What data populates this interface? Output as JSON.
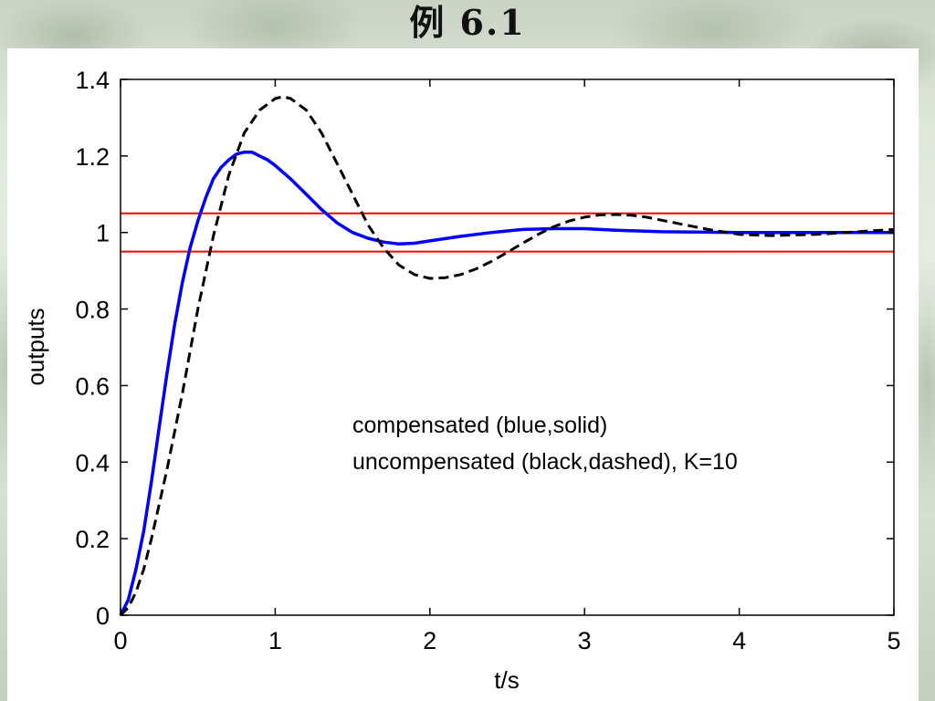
{
  "slide_title": "例 6.1",
  "chart_data": {
    "type": "line",
    "xlabel": "t/s",
    "ylabel": "outputs",
    "xlim": [
      0,
      5
    ],
    "ylim": [
      0,
      1.4
    ],
    "x_ticks": [
      "0",
      "1",
      "2",
      "3",
      "4",
      "5"
    ],
    "y_ticks": [
      "0",
      "0.2",
      "0.4",
      "0.6",
      "0.8",
      "1",
      "1.2",
      "1.4"
    ],
    "grid": false,
    "annotations": [
      "compensated (blue,solid)",
      "uncompensated (black,dashed), K=10"
    ],
    "reference_lines": [
      1.05,
      0.95
    ],
    "series": [
      {
        "style": "solid",
        "color": "#0000ff",
        "x": [
          0,
          0.05,
          0.1,
          0.15,
          0.2,
          0.25,
          0.3,
          0.35,
          0.4,
          0.45,
          0.5,
          0.55,
          0.6,
          0.65,
          0.7,
          0.75,
          0.8,
          0.85,
          0.9,
          0.95,
          1.0,
          1.1,
          1.2,
          1.3,
          1.4,
          1.5,
          1.6,
          1.7,
          1.8,
          1.9,
          2.0,
          2.2,
          2.4,
          2.6,
          2.8,
          3.0,
          3.2,
          3.5,
          4.0,
          4.5,
          5.0
        ],
        "y": [
          0,
          0.04,
          0.12,
          0.22,
          0.35,
          0.49,
          0.63,
          0.76,
          0.87,
          0.96,
          1.03,
          1.09,
          1.14,
          1.17,
          1.19,
          1.205,
          1.21,
          1.21,
          1.2,
          1.19,
          1.175,
          1.14,
          1.1,
          1.06,
          1.025,
          1.0,
          0.985,
          0.975,
          0.97,
          0.972,
          0.978,
          0.99,
          1.0,
          1.008,
          1.01,
          1.01,
          1.006,
          1.002,
          1.0,
          1.0,
          1.0
        ]
      },
      {
        "style": "dashed",
        "color": "#000000",
        "x": [
          0,
          0.05,
          0.1,
          0.15,
          0.2,
          0.3,
          0.4,
          0.5,
          0.6,
          0.7,
          0.8,
          0.9,
          1.0,
          1.05,
          1.1,
          1.2,
          1.3,
          1.4,
          1.5,
          1.6,
          1.7,
          1.8,
          1.9,
          2.0,
          2.1,
          2.2,
          2.3,
          2.4,
          2.5,
          2.6,
          2.7,
          2.8,
          2.9,
          3.0,
          3.1,
          3.2,
          3.3,
          3.4,
          3.5,
          3.6,
          3.8,
          4.0,
          4.2,
          4.5,
          4.8,
          5.0
        ],
        "y": [
          0,
          0.02,
          0.06,
          0.12,
          0.2,
          0.38,
          0.58,
          0.8,
          0.99,
          1.15,
          1.26,
          1.32,
          1.35,
          1.355,
          1.35,
          1.32,
          1.26,
          1.18,
          1.1,
          1.02,
          0.96,
          0.915,
          0.89,
          0.88,
          0.882,
          0.89,
          0.905,
          0.925,
          0.948,
          0.972,
          0.995,
          1.015,
          1.03,
          1.04,
          1.046,
          1.047,
          1.045,
          1.04,
          1.032,
          1.024,
          1.008,
          0.995,
          0.992,
          0.995,
          1.003,
          1.008
        ]
      }
    ]
  }
}
